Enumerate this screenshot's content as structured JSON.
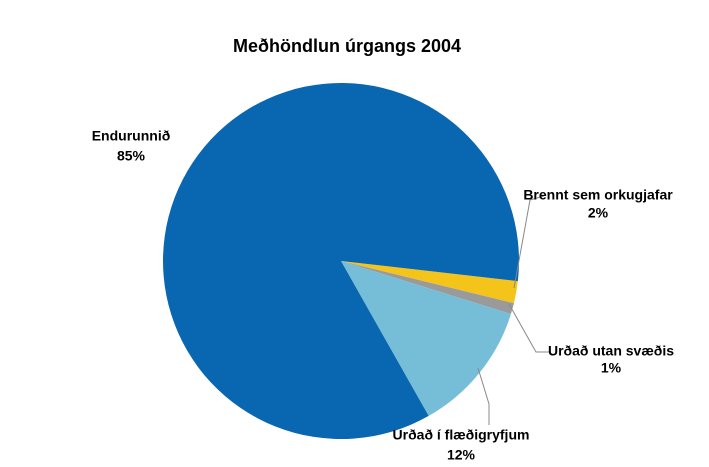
{
  "chart_data": {
    "type": "pie",
    "title": "Meðhöndlun úrgangs 2004",
    "categories": [
      "Brennt sem orkugjafar",
      "Urðað utan svæðis",
      "Urðað í flæðigryfjum",
      "Endurunnið"
    ],
    "values": [
      2,
      1,
      12,
      85
    ],
    "value_labels": [
      "2%",
      "1%",
      "12%",
      "85%"
    ],
    "colors": [
      "#f5c41a",
      "#9a9a9a",
      "#76bdd8",
      "#0867b0"
    ]
  }
}
